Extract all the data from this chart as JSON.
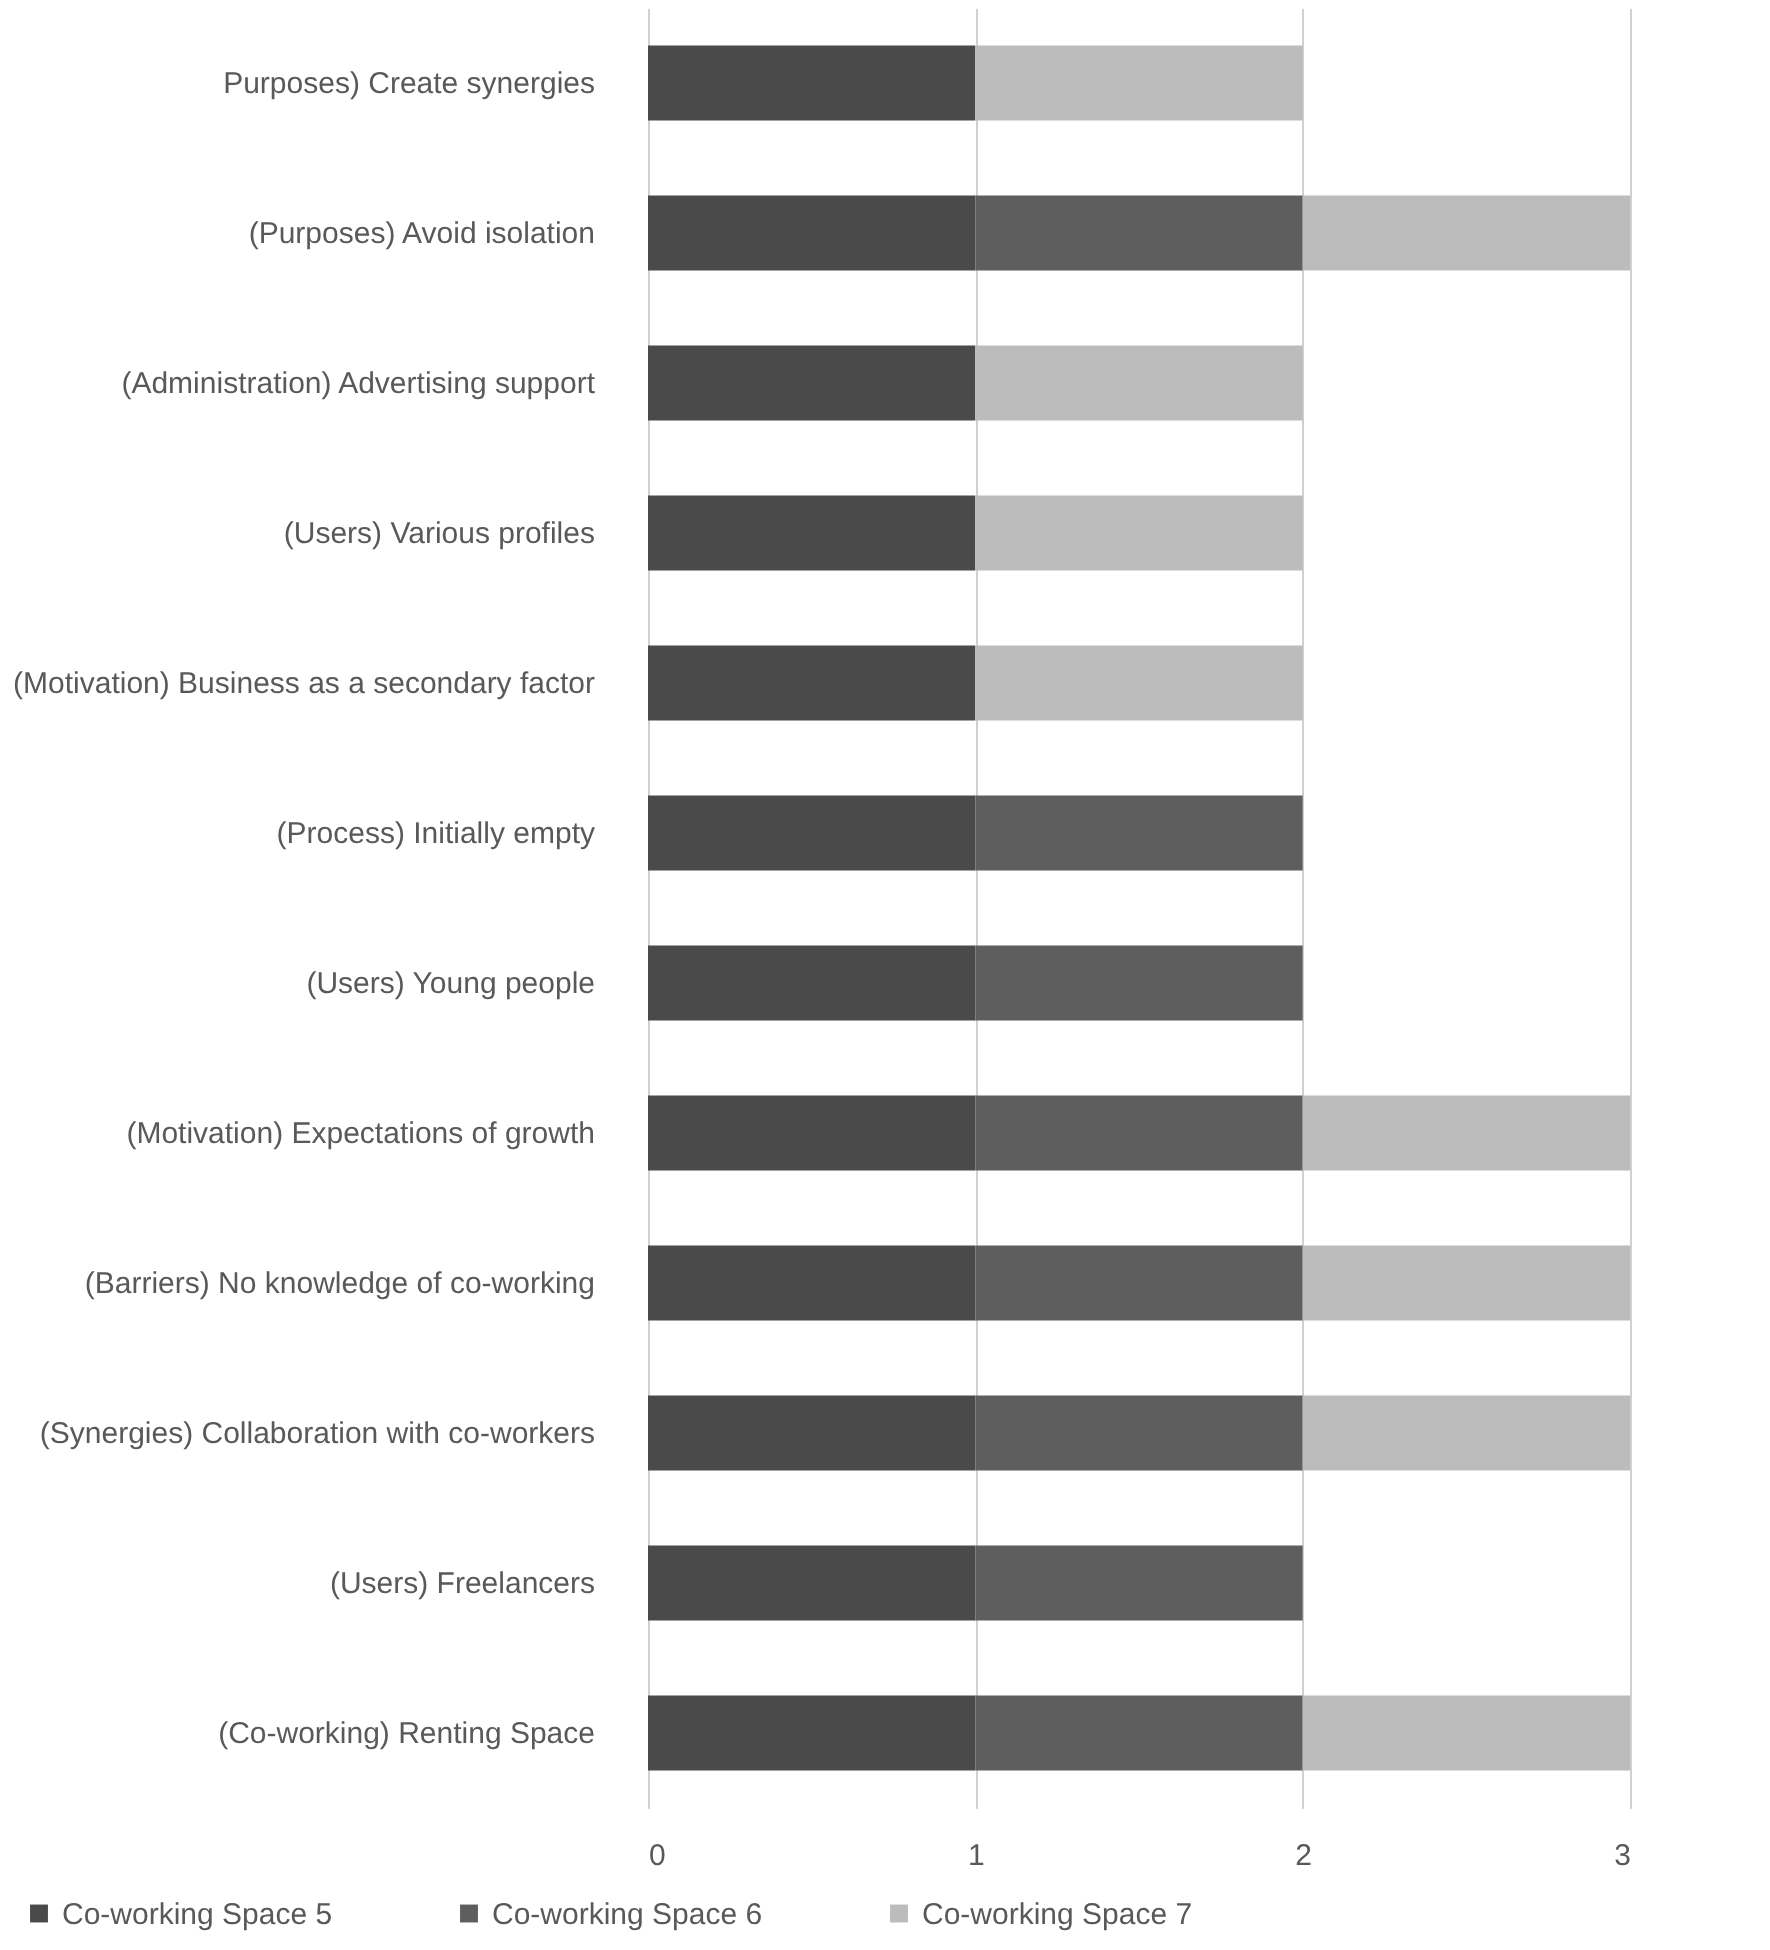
{
  "chart_data": {
    "type": "bar",
    "orientation": "horizontal",
    "stacked": true,
    "categories": [
      "Purposes) Create synergies",
      "(Purposes) Avoid isolation",
      "(Administration) Advertising support",
      "(Users) Various profiles",
      "(Motivation) Business as a secondary factor",
      "(Process) Initially empty",
      "(Users) Young people",
      "(Motivation) Expectations of growth",
      "(Barriers) No knowledge of co-working",
      "(Synergies) Collaboration with co-workers",
      "(Users) Freelancers",
      "(Co-working) Renting Space"
    ],
    "series": [
      {
        "name": "Co-working Space 5",
        "color": "#4a4a4a",
        "values": [
          1,
          1,
          1,
          1,
          1,
          1,
          1,
          1,
          1,
          1,
          1,
          1
        ]
      },
      {
        "name": "Co-working Space 6",
        "color": "#5e5e5e",
        "values": [
          0,
          1,
          0,
          0,
          0,
          1,
          1,
          1,
          1,
          1,
          1,
          1
        ]
      },
      {
        "name": "Co-working Space 7",
        "color": "#bcbcbc",
        "values": [
          1,
          1,
          1,
          1,
          1,
          0,
          0,
          1,
          1,
          1,
          0,
          1
        ]
      }
    ],
    "xlim": [
      0,
      3
    ],
    "xticks": [
      0,
      1,
      2,
      3
    ],
    "grid": "x",
    "legend": "bottom"
  }
}
